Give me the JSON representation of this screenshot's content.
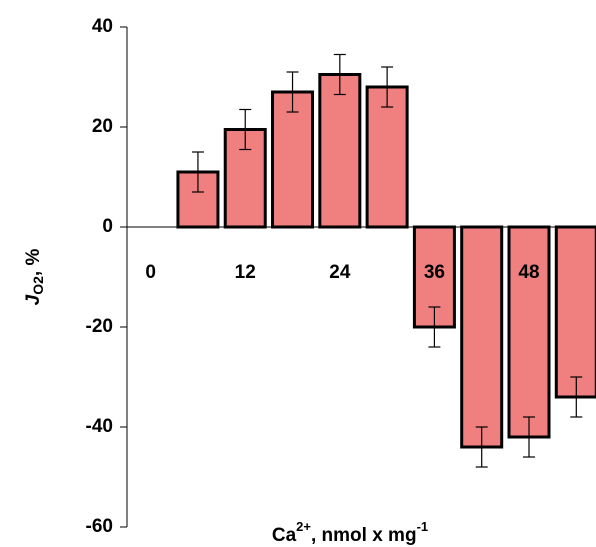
{
  "chart_data": {
    "type": "bar",
    "x": [
      6,
      12,
      18,
      24,
      30,
      36,
      42,
      48,
      54
    ],
    "values": [
      11,
      19.5,
      27,
      30.5,
      28,
      -20,
      -44,
      -42,
      -34
    ],
    "errors": [
      4,
      4,
      4,
      4,
      4,
      4,
      4,
      4,
      4
    ],
    "color": "#f08080",
    "xlim": [
      -3,
      56.5
    ],
    "xticks": [
      0,
      12,
      24,
      36,
      48
    ],
    "ylim": [
      -60,
      40
    ],
    "yticks": [
      -60,
      -40,
      -20,
      0,
      20,
      40
    ],
    "ylabel": [
      "J",
      "O2",
      ", %"
    ],
    "xlabel": [
      "Ca",
      "2+",
      ", nmol x mg",
      "-1"
    ]
  }
}
